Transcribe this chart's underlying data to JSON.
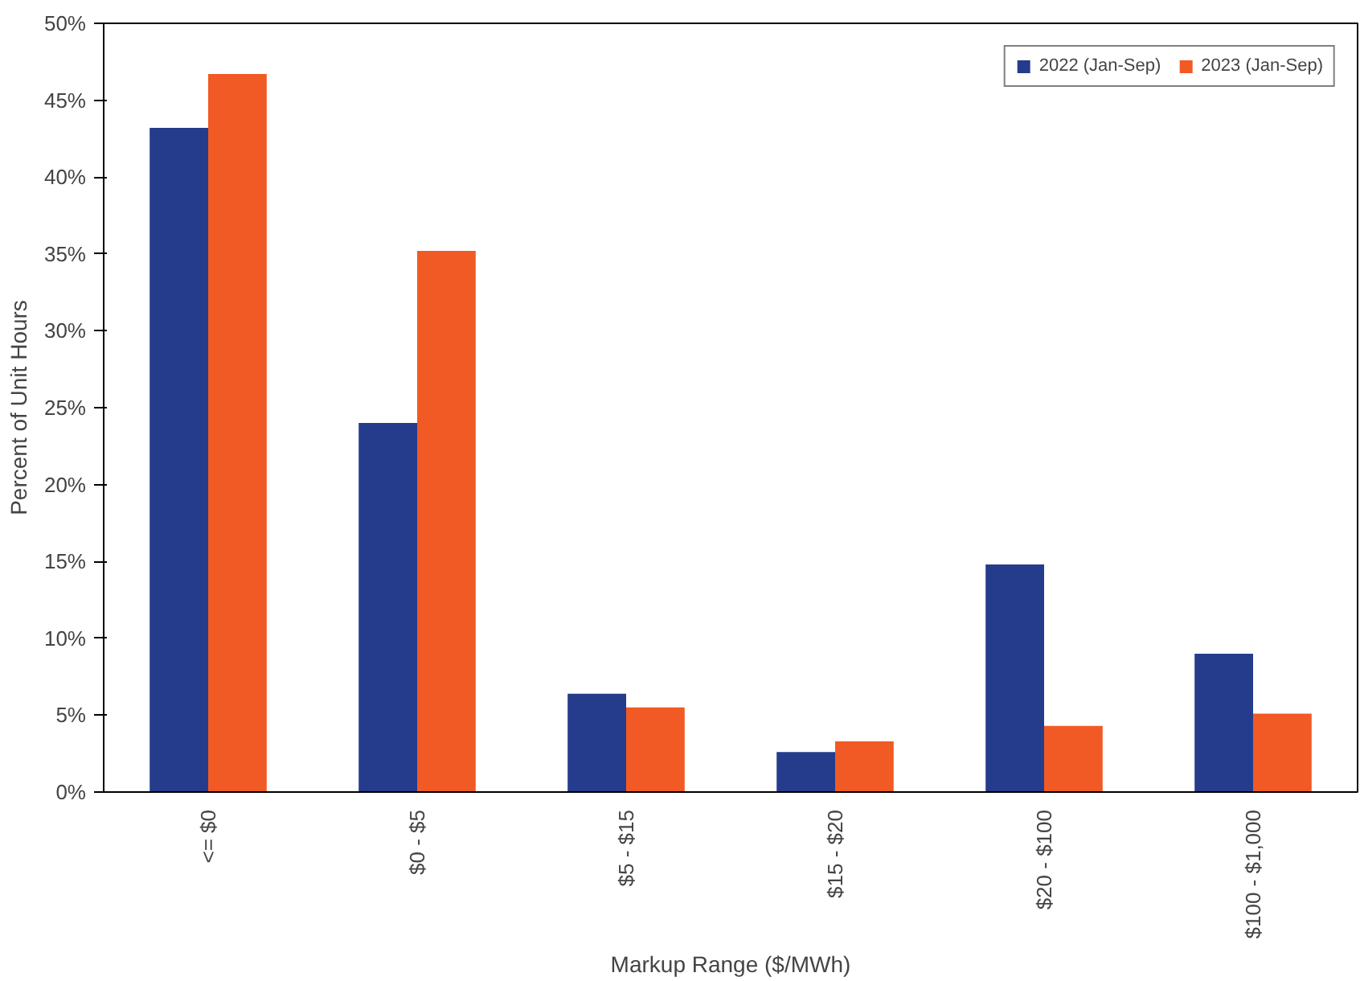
{
  "chart_data": {
    "type": "bar",
    "xlabel": "Markup Range ($/MWh)",
    "ylabel": "Percent of Unit Hours",
    "categories": [
      "<= $0",
      "$0 - $5",
      "$5 - $15",
      "$15 - $20",
      "$20 - $100",
      "$100 - $1,000"
    ],
    "series": [
      {
        "name": "2022 (Jan-Sep)",
        "color": "#253c8c",
        "values": [
          43.2,
          24.0,
          6.4,
          2.6,
          14.8,
          9.0
        ]
      },
      {
        "name": "2023 (Jan-Sep)",
        "color": "#f15a24",
        "values": [
          46.7,
          35.2,
          5.5,
          3.3,
          4.3,
          5.1
        ]
      }
    ],
    "ylim": [
      0,
      50
    ],
    "yticks": [
      {
        "value": 0,
        "label": "0%"
      },
      {
        "value": 5,
        "label": "5%"
      },
      {
        "value": 10,
        "label": "10%"
      },
      {
        "value": 15,
        "label": "15%"
      },
      {
        "value": 20,
        "label": "20%"
      },
      {
        "value": 25,
        "label": "25%"
      },
      {
        "value": 30,
        "label": "30%"
      },
      {
        "value": 35,
        "label": "35%"
      },
      {
        "value": 40,
        "label": "40%"
      },
      {
        "value": 45,
        "label": "45%"
      },
      {
        "value": 50,
        "label": "50%"
      }
    ],
    "grid": false,
    "legend": "top right"
  }
}
